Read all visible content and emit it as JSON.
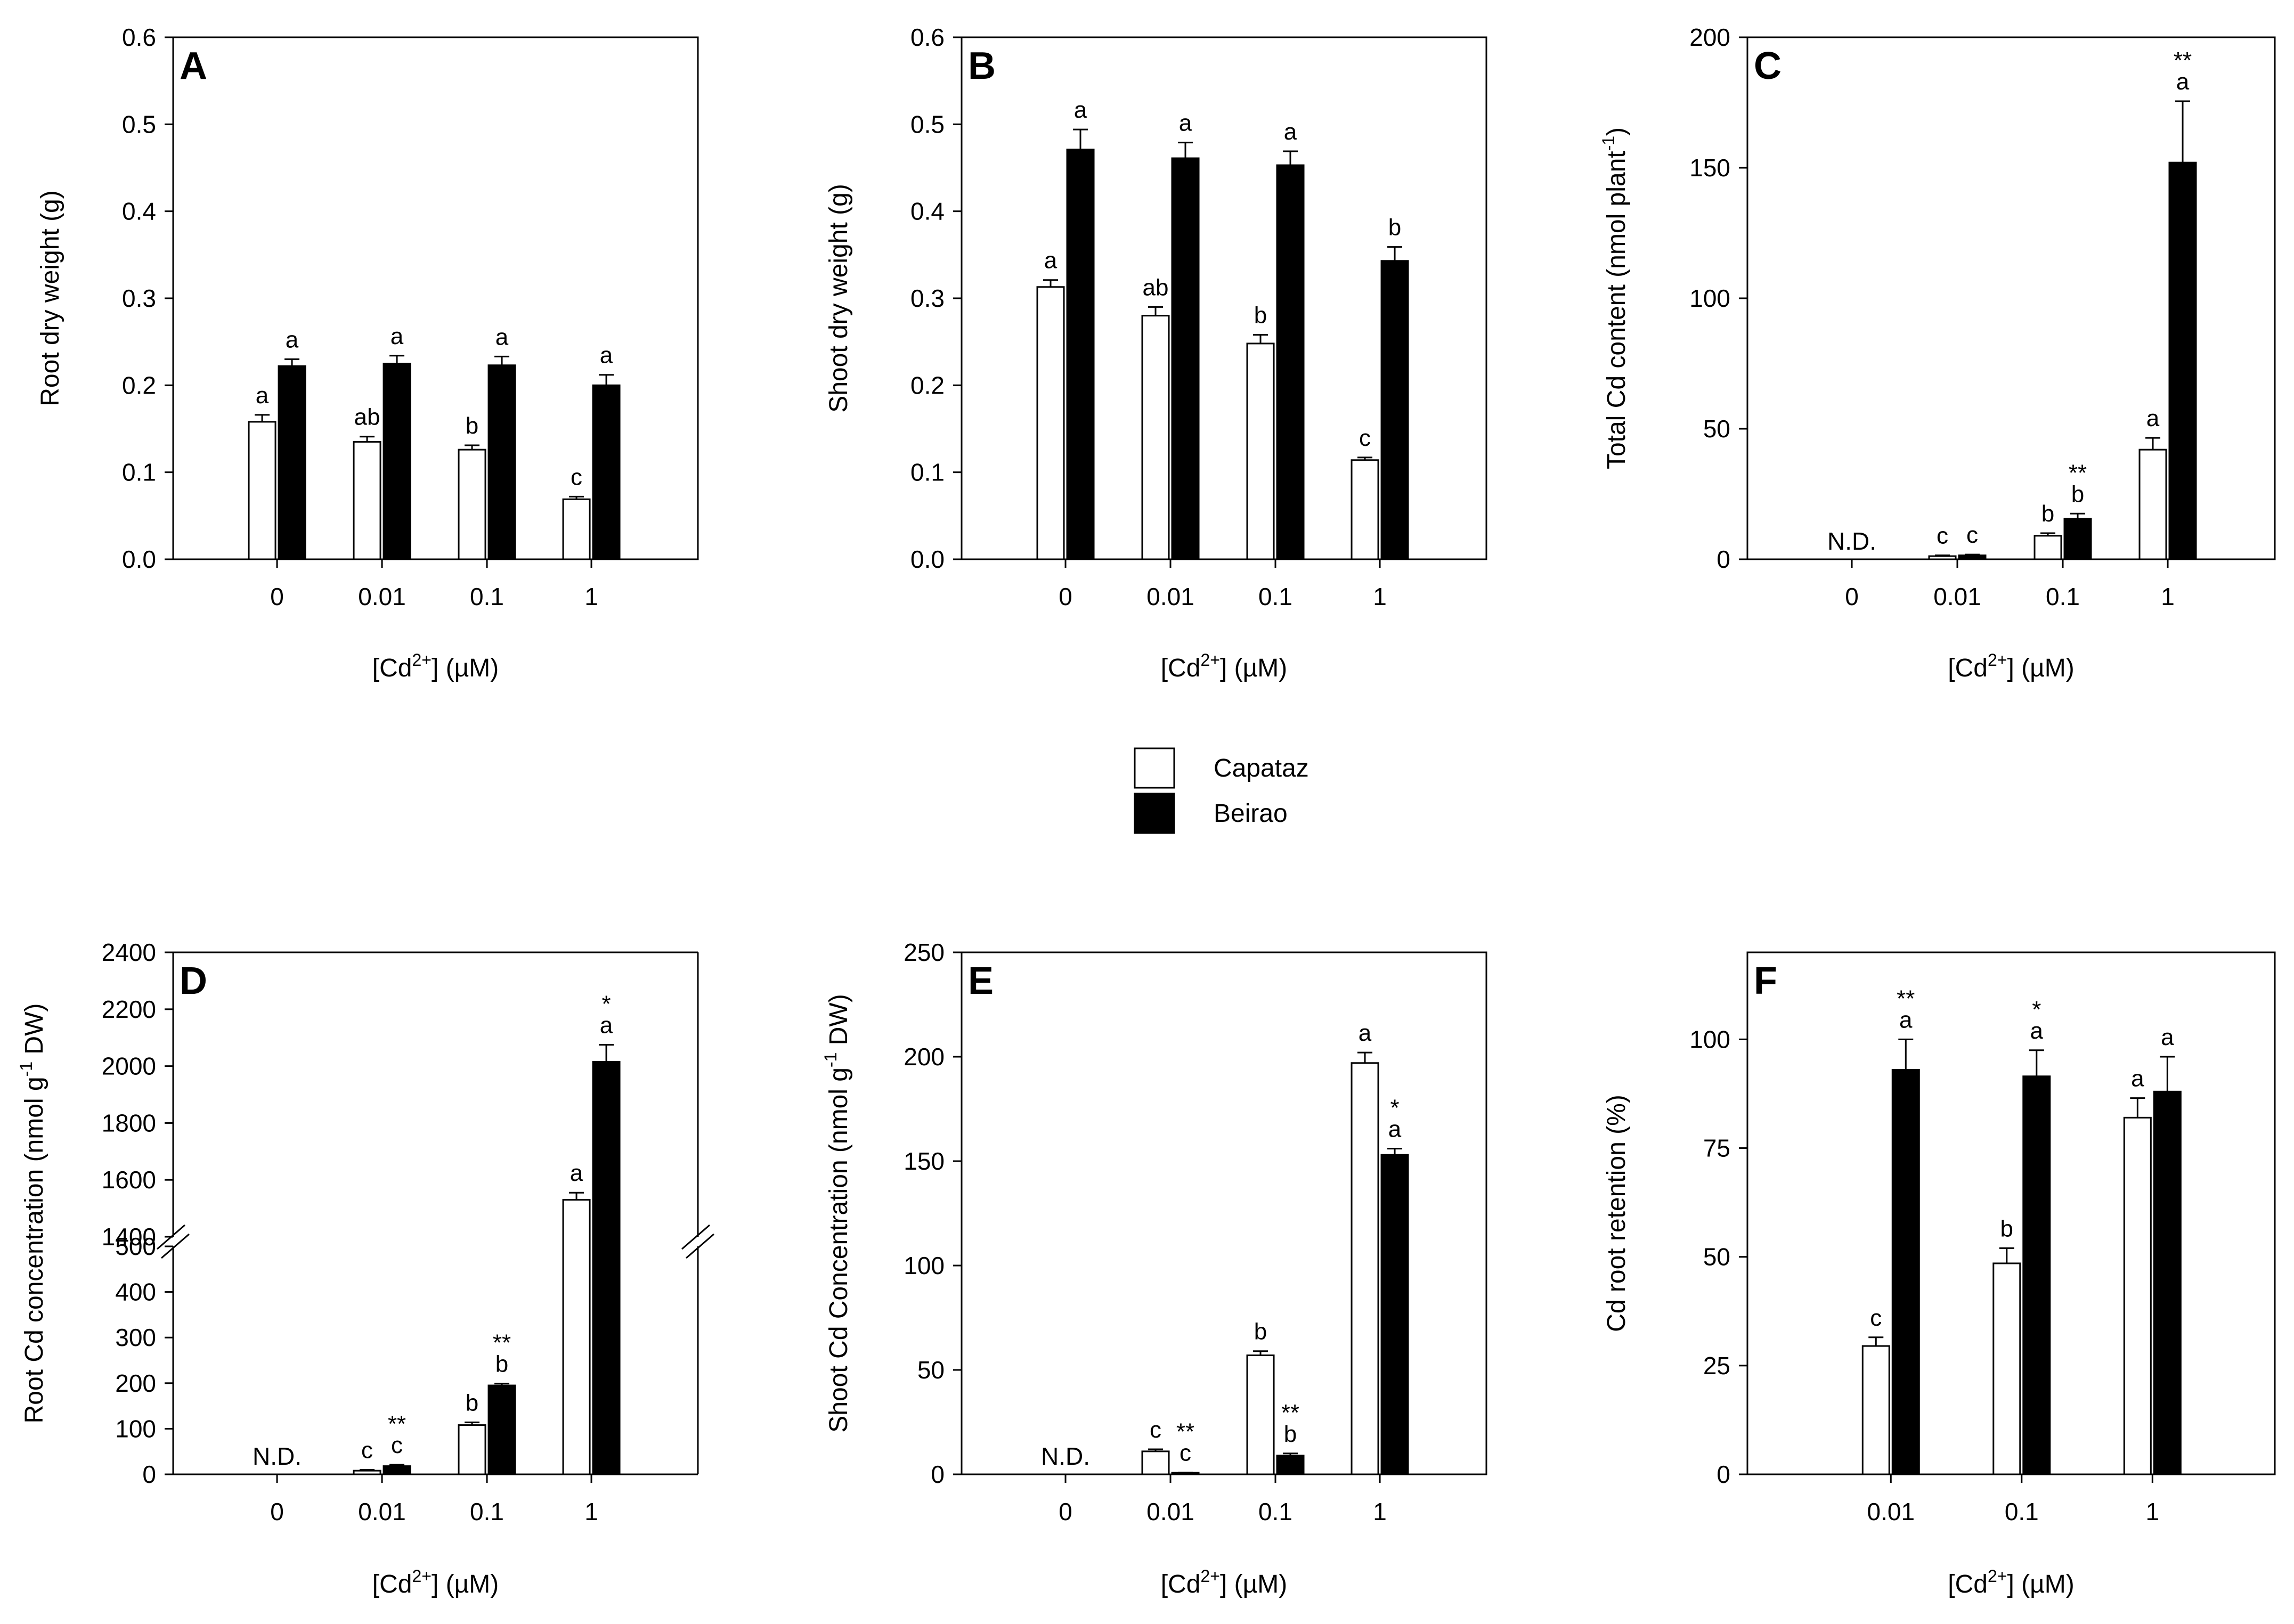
{
  "legend": [
    {
      "label": "Capataz",
      "color": "#ffffff"
    },
    {
      "label": "Beirao",
      "color": "#000000"
    }
  ],
  "colors": {
    "capataz": "#ffffff",
    "beirao": "#000000",
    "stroke": "#000000"
  },
  "chart_data": [
    {
      "id": "A",
      "type": "bar",
      "panel_label": "A",
      "categories": [
        "0",
        "0.01",
        "0.1",
        "1"
      ],
      "xlabel_main": "[Cd",
      "xlabel_sup": "2+",
      "xlabel_tail": "] (µM)",
      "ylabel": "Root dry weight (g)",
      "ylim": [
        0,
        0.6
      ],
      "yticks": [
        {
          "v": 0,
          "t": "0.0"
        },
        {
          "v": 0.1,
          "t": "0.1"
        },
        {
          "v": 0.2,
          "t": "0.2"
        },
        {
          "v": 0.3,
          "t": "0.3"
        },
        {
          "v": 0.4,
          "t": "0.4"
        },
        {
          "v": 0.5,
          "t": "0.5"
        },
        {
          "v": 0.6,
          "t": "0.6"
        }
      ],
      "series": [
        {
          "name": "Capataz",
          "values": [
            0.158,
            0.135,
            0.126,
            0.069
          ],
          "errors": [
            0.008,
            0.006,
            0.005,
            0.003
          ],
          "letters": [
            "a",
            "ab",
            "b",
            "c"
          ],
          "stars": [
            "",
            "",
            "",
            ""
          ]
        },
        {
          "name": "Beirao",
          "values": [
            0.222,
            0.225,
            0.223,
            0.2
          ],
          "errors": [
            0.008,
            0.009,
            0.01,
            0.012
          ],
          "letters": [
            "a",
            "a",
            "a",
            "a"
          ],
          "stars": [
            "",
            "",
            "",
            ""
          ]
        }
      ]
    },
    {
      "id": "B",
      "type": "bar",
      "panel_label": "B",
      "categories": [
        "0",
        "0.01",
        "0.1",
        "1"
      ],
      "xlabel_main": "[Cd",
      "xlabel_sup": "2+",
      "xlabel_tail": "] (µM)",
      "ylabel": "Shoot dry weight (g)",
      "ylim": [
        0,
        0.6
      ],
      "yticks": [
        {
          "v": 0,
          "t": "0.0"
        },
        {
          "v": 0.1,
          "t": "0.1"
        },
        {
          "v": 0.2,
          "t": "0.2"
        },
        {
          "v": 0.3,
          "t": "0.3"
        },
        {
          "v": 0.4,
          "t": "0.4"
        },
        {
          "v": 0.5,
          "t": "0.5"
        },
        {
          "v": 0.6,
          "t": "0.6"
        }
      ],
      "series": [
        {
          "name": "Capataz",
          "values": [
            0.313,
            0.28,
            0.248,
            0.114
          ],
          "errors": [
            0.008,
            0.01,
            0.01,
            0.003
          ],
          "letters": [
            "a",
            "ab",
            "b",
            "c"
          ],
          "stars": [
            "",
            "",
            "",
            ""
          ]
        },
        {
          "name": "Beirao",
          "values": [
            0.471,
            0.461,
            0.453,
            0.343
          ],
          "errors": [
            0.023,
            0.018,
            0.016,
            0.016
          ],
          "letters": [
            "a",
            "a",
            "a",
            "b"
          ],
          "stars": [
            "",
            "",
            "",
            ""
          ]
        }
      ]
    },
    {
      "id": "C",
      "type": "bar",
      "panel_label": "C",
      "categories": [
        "0",
        "0.01",
        "0.1",
        "1"
      ],
      "xlabel_main": "[Cd",
      "xlabel_sup": "2+",
      "xlabel_tail": "] (µM)",
      "ylabel_main": "Total Cd content (nmol plant",
      "ylabel_sup": "-1",
      "ylabel_tail": ")",
      "ylim": [
        0,
        200
      ],
      "yticks": [
        {
          "v": 0,
          "t": "0"
        },
        {
          "v": 50,
          "t": "50"
        },
        {
          "v": 100,
          "t": "100"
        },
        {
          "v": 150,
          "t": "150"
        },
        {
          "v": 200,
          "t": "200"
        }
      ],
      "nd_label": "N.D.",
      "series": [
        {
          "name": "Capataz",
          "values": [
            null,
            1.2,
            9.0,
            42.0
          ],
          "errors": [
            0,
            0.3,
            1.0,
            4.5
          ],
          "letters": [
            "",
            "c",
            "b",
            "a"
          ],
          "stars": [
            "",
            "",
            "",
            ""
          ]
        },
        {
          "name": "Beirao",
          "values": [
            null,
            1.5,
            15.5,
            152.0
          ],
          "errors": [
            0,
            0.3,
            2.0,
            23.5
          ],
          "letters": [
            "",
            "c",
            "b",
            "a"
          ],
          "stars": [
            "",
            "",
            "**",
            "**"
          ]
        }
      ]
    },
    {
      "id": "D",
      "type": "bar",
      "panel_label": "D",
      "categories": [
        "0",
        "0.01",
        "0.1",
        "1"
      ],
      "xlabel_main": "[Cd",
      "xlabel_sup": "2+",
      "xlabel_tail": "] (µM)",
      "ylabel_main": "Root Cd concentration (nmol g",
      "ylabel_sup": "-1",
      "ylabel_tail": " DW)",
      "axis_break": {
        "lower": [
          0,
          500
        ],
        "upper": [
          1400,
          2400
        ]
      },
      "yticks_lower": [
        {
          "v": 0,
          "t": "0"
        },
        {
          "v": 100,
          "t": "100"
        },
        {
          "v": 200,
          "t": "200"
        },
        {
          "v": 300,
          "t": "300"
        },
        {
          "v": 400,
          "t": "400"
        },
        {
          "v": 500,
          "t": "500"
        }
      ],
      "yticks_upper": [
        {
          "v": 1400,
          "t": "1400"
        },
        {
          "v": 1600,
          "t": "1600"
        },
        {
          "v": 1800,
          "t": "1800"
        },
        {
          "v": 2000,
          "t": "2000"
        },
        {
          "v": 2200,
          "t": "2200"
        },
        {
          "v": 2400,
          "t": "2400"
        }
      ],
      "nd_label": "N.D.",
      "series": [
        {
          "name": "Capataz",
          "values": [
            null,
            8,
            108,
            1530
          ],
          "errors": [
            0,
            2,
            6,
            25
          ],
          "letters": [
            "",
            "c",
            "b",
            "a"
          ],
          "stars": [
            "",
            "",
            "",
            ""
          ]
        },
        {
          "name": "Beirao",
          "values": [
            null,
            18,
            195,
            2015
          ],
          "errors": [
            0,
            3,
            4,
            60
          ],
          "letters": [
            "",
            "c",
            "b",
            "a"
          ],
          "stars": [
            "",
            "**",
            "**",
            "*"
          ]
        }
      ]
    },
    {
      "id": "E",
      "type": "bar",
      "panel_label": "E",
      "categories": [
        "0",
        "0.01",
        "0.1",
        "1"
      ],
      "xlabel_main": "[Cd",
      "xlabel_sup": "2+",
      "xlabel_tail": "] (µM)",
      "ylabel_main": "Shoot Cd Concentration (nmol g",
      "ylabel_sup": "-1",
      "ylabel_tail": " DW)",
      "ylim": [
        0,
        250
      ],
      "yticks": [
        {
          "v": 0,
          "t": "0"
        },
        {
          "v": 50,
          "t": "50"
        },
        {
          "v": 100,
          "t": "100"
        },
        {
          "v": 150,
          "t": "150"
        },
        {
          "v": 200,
          "t": "200"
        },
        {
          "v": 250,
          "t": "250"
        }
      ],
      "nd_label": "N.D.",
      "series": [
        {
          "name": "Capataz",
          "values": [
            null,
            11,
            57,
            197
          ],
          "errors": [
            0,
            1,
            2,
            5
          ],
          "letters": [
            "",
            "c",
            "b",
            "a"
          ],
          "stars": [
            "",
            "",
            "",
            ""
          ]
        },
        {
          "name": "Beirao",
          "values": [
            null,
            0.7,
            9,
            153
          ],
          "errors": [
            0,
            0.2,
            1,
            3
          ],
          "letters": [
            "",
            "c",
            "b",
            "a"
          ],
          "stars": [
            "",
            "**",
            "**",
            "*"
          ]
        }
      ]
    },
    {
      "id": "F",
      "type": "bar",
      "panel_label": "F",
      "categories": [
        "0.01",
        "0.1",
        "1"
      ],
      "xlabel_main": "[Cd",
      "xlabel_sup": "2+",
      "xlabel_tail": "] (µM)",
      "ylabel": "Cd root retention (%)",
      "ylim": [
        0,
        120
      ],
      "yticks": [
        {
          "v": 0,
          "t": "0"
        },
        {
          "v": 25,
          "t": "25"
        },
        {
          "v": 50,
          "t": "50"
        },
        {
          "v": 75,
          "t": "75"
        },
        {
          "v": 100,
          "t": "100"
        }
      ],
      "series": [
        {
          "name": "Capataz",
          "values": [
            29.5,
            48.5,
            82.0
          ],
          "errors": [
            2.0,
            3.5,
            4.5
          ],
          "letters": [
            "c",
            "b",
            "a"
          ],
          "stars": [
            "",
            "",
            ""
          ]
        },
        {
          "name": "Beirao",
          "values": [
            93.0,
            91.5,
            88.0
          ],
          "errors": [
            7.0,
            6.0,
            8.0
          ],
          "letters": [
            "a",
            "a",
            "a"
          ],
          "stars": [
            "**",
            "*",
            ""
          ]
        }
      ]
    }
  ]
}
